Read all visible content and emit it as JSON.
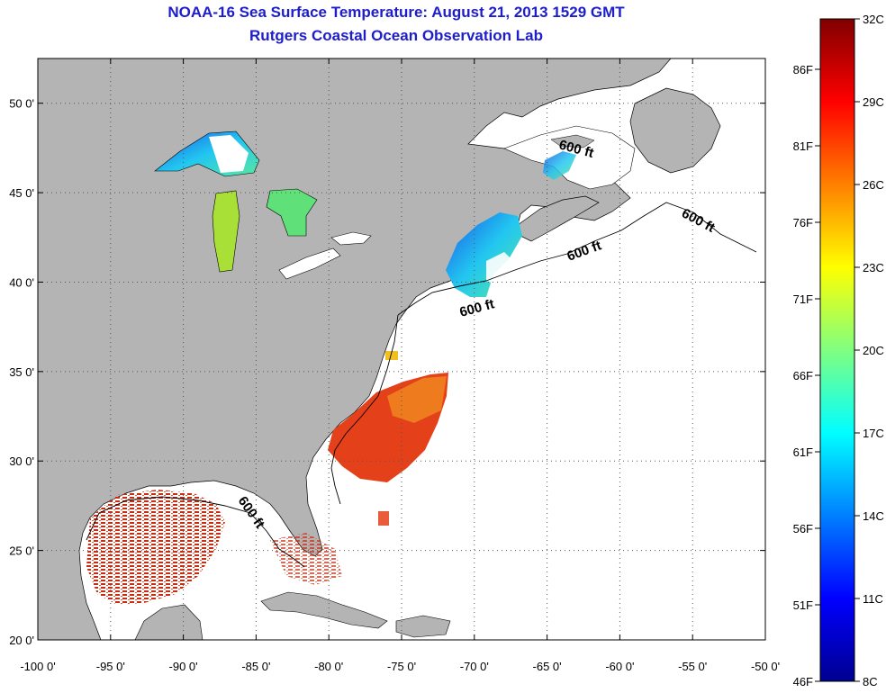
{
  "title": "NOAA-16 Sea Surface Temperature:  August 21, 2013 1529 GMT",
  "subtitle": "Rutgers Coastal Ocean Observation Lab",
  "map": {
    "lon_ticks": [
      "-100 0'",
      "-95 0'",
      "-90 0'",
      "-85 0'",
      "-80 0'",
      "-75 0'",
      "-70 0'",
      "-65 0'",
      "-60 0'",
      "-55 0'",
      "-50 0'"
    ],
    "lat_ticks": [
      "50 0'",
      "45 0'",
      "40 0'",
      "35 0'",
      "30 0'",
      "25 0'",
      "20 0'"
    ],
    "lon_range": [
      -100,
      -50
    ],
    "lat_range": [
      20,
      52.5
    ],
    "contour_labels": [
      "600 ft",
      "600 ft",
      "600 ft",
      "600 ft",
      "600 ft"
    ],
    "land_color": "#b4b4b4",
    "grid": "dotted"
  },
  "colorbar": {
    "celsius_labels": [
      "32C",
      "29C",
      "26C",
      "23C",
      "20C",
      "17C",
      "14C",
      "11C",
      "8C"
    ],
    "fahrenheit_labels": [
      "86F",
      "81F",
      "76F",
      "71F",
      "66F",
      "61F",
      "56F",
      "51F",
      "46F"
    ]
  }
}
